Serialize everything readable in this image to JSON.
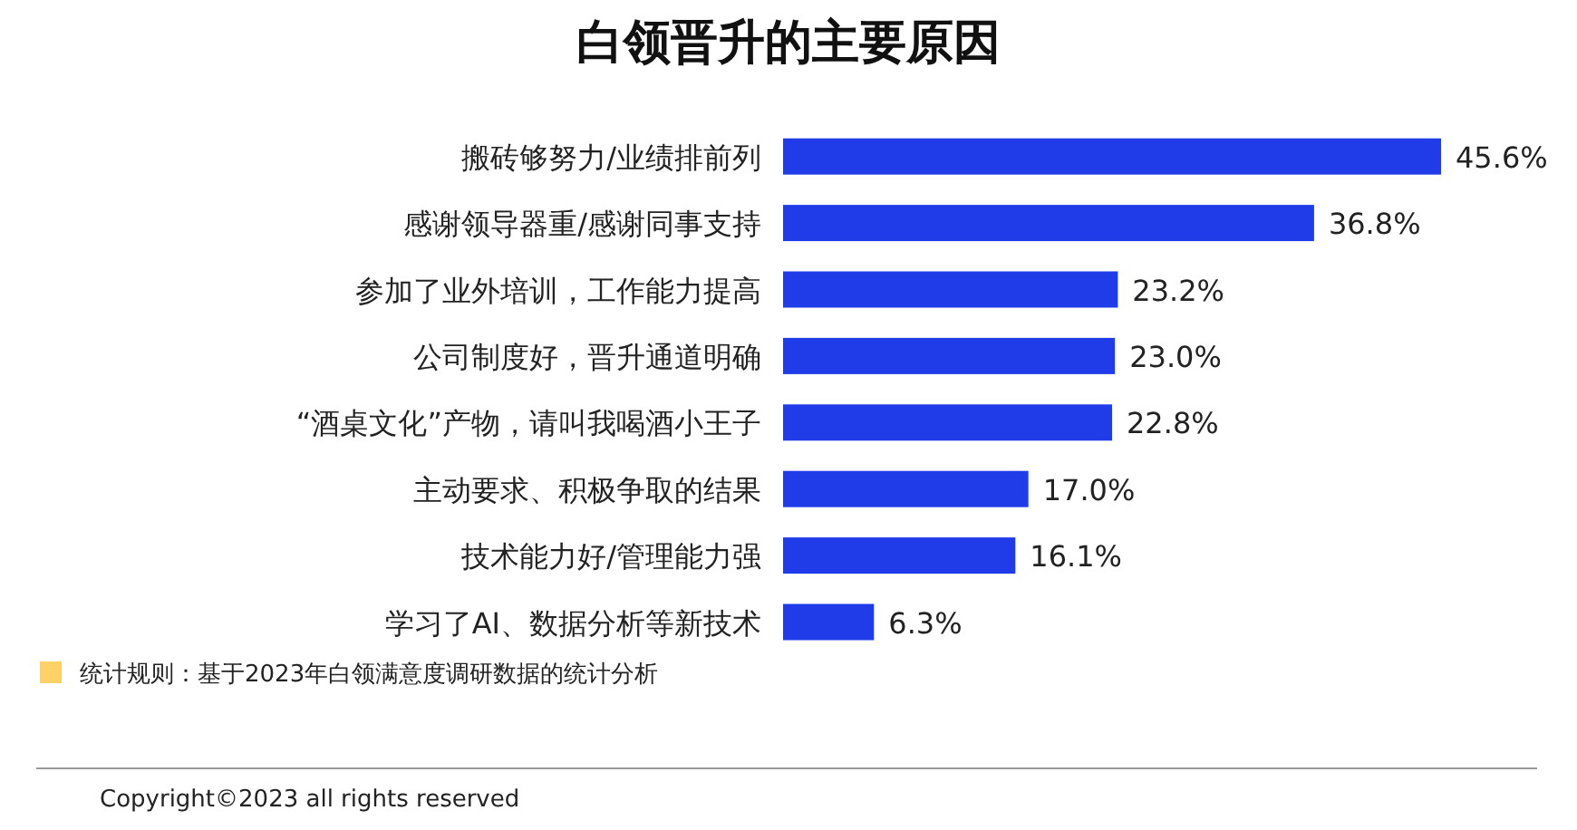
{
  "chart_data": {
    "type": "bar",
    "orientation": "horizontal",
    "title": "白领晋升的主要原因",
    "categories": [
      "搬砖够努力/业绩排前列",
      "感谢领导器重/感谢同事支持",
      "参加了业外培训，工作能力提高",
      "公司制度好，晋升通道明确",
      "“酒桌文化”产物，请叫我喝酒小王子",
      "主动要求、积极争取的结果",
      "技术能力好/管理能力强",
      "学习了AI、数据分析等新技术"
    ],
    "values": [
      45.6,
      36.8,
      23.2,
      23.0,
      22.8,
      17.0,
      16.1,
      6.3
    ],
    "value_labels": [
      "45.6%",
      "36.8%",
      "23.2%",
      "23.0%",
      "22.8%",
      "17.0%",
      "16.1%",
      "6.3%"
    ],
    "color": "#1f3ce8",
    "annotations": [
      "统计规则：基于2023年白领满意度调研数据的统计分析",
      "Copyright©2023 all rights reserved"
    ]
  }
}
